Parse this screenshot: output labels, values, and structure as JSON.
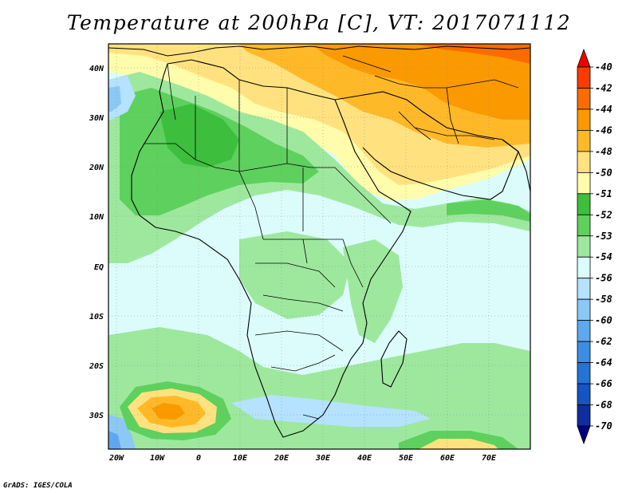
{
  "title": "Temperature at 200hPa [C], VT: 2017071112",
  "credit": "GrADS: IGES/COLA",
  "x_ticks": [
    "20W",
    "10W",
    "0",
    "10E",
    "20E",
    "30E",
    "40E",
    "50E",
    "60E",
    "70E"
  ],
  "y_ticks": [
    "40N",
    "30N",
    "20N",
    "10N",
    "EQ",
    "10S",
    "20S",
    "30S"
  ],
  "colorbar": {
    "labels": [
      "-40",
      "-42",
      "-44",
      "-46",
      "-48",
      "-50",
      "-51",
      "-52",
      "-53",
      "-54",
      "-56",
      "-58",
      "-60",
      "-62",
      "-64",
      "-66",
      "-68",
      "-70"
    ],
    "colors": [
      "#f00000",
      "#fa3c00",
      "#fa6c00",
      "#fa9a00",
      "#ffb928",
      "#ffe27f",
      "#fffcab",
      "#3dbe3d",
      "#5ed05e",
      "#9ee89e",
      "#dcfcfc",
      "#b4e2ff",
      "#8bc8f5",
      "#5ea8ee",
      "#3c8de5",
      "#2473d7",
      "#1454c3",
      "#0f2d9e",
      "#000080"
    ]
  }
}
